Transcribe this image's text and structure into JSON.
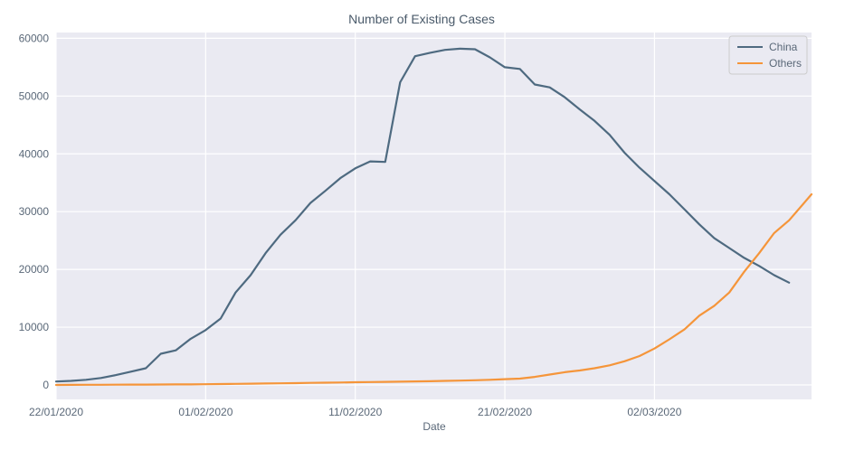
{
  "chart_data": {
    "type": "line",
    "title": "Number of Existing Cases",
    "xlabel": "Date",
    "ylabel": "",
    "x_start": "22/01/2020",
    "x_end": "12/03/2020",
    "x_ticks": [
      "22/01/2020",
      "01/02/2020",
      "11/02/2020",
      "21/02/2020",
      "02/03/2020"
    ],
    "ylim": [
      -2500,
      61000
    ],
    "y_ticks": [
      0,
      10000,
      20000,
      30000,
      40000,
      50000,
      60000
    ],
    "grid": true,
    "legend": "top-right",
    "series": [
      {
        "name": "China",
        "color": "#4e6a80",
        "values": [
          600,
          700,
          900,
          1200,
          1700,
          2300,
          2900,
          5400,
          6000,
          8000,
          9500,
          11500,
          16000,
          19000,
          22800,
          26000,
          28500,
          31500,
          33600,
          35800,
          37500,
          38700,
          38600,
          52400,
          56900,
          57500,
          58000,
          58200,
          58100,
          56700,
          55000,
          54700,
          52000,
          51500,
          49800,
          47700,
          45700,
          43300,
          40200,
          37600,
          35300,
          33000,
          30400,
          27800,
          25400,
          23700,
          22000,
          20600,
          19000,
          17700
        ]
      },
      {
        "name": "Others",
        "color": "#f5953a",
        "values": [
          10,
          20,
          30,
          40,
          50,
          60,
          70,
          80,
          90,
          100,
          120,
          160,
          190,
          220,
          250,
          280,
          320,
          360,
          400,
          430,
          470,
          500,
          530,
          570,
          610,
          650,
          700,
          760,
          820,
          900,
          1000,
          1100,
          1400,
          1800,
          2200,
          2500,
          2900,
          3400,
          4100,
          5000,
          6300,
          7900,
          9600,
          12000,
          13700,
          16000,
          19600,
          22800,
          26300,
          28500
        ]
      }
    ],
    "tail_points": {
      "Others_last": 33000
    }
  }
}
